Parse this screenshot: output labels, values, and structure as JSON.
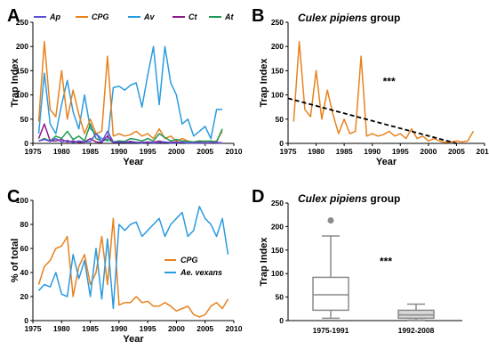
{
  "chart_data": [
    {
      "panel": "A",
      "type": "line",
      "xlabel": "Year",
      "ylabel": "Trap Index",
      "xlim": [
        1975,
        2010
      ],
      "ylim": [
        0,
        250
      ],
      "xticks": [
        1975,
        1980,
        1985,
        1990,
        1995,
        2000,
        2005,
        2010
      ],
      "yticks": [
        0,
        50,
        100,
        150,
        200,
        250
      ],
      "legend_placement": "top",
      "series": [
        {
          "name": "Ap",
          "color": "#5b4fd6",
          "x": [
            1976,
            1977,
            1978,
            1979,
            1980,
            1981,
            1982,
            1983,
            1984,
            1985,
            1986,
            1987,
            1988,
            1989,
            1990,
            1991,
            1992,
            1993,
            1994,
            1995,
            1996,
            1997,
            1998,
            1999,
            2000,
            2001,
            2002,
            2003,
            2004,
            2005,
            2006,
            2007,
            2008
          ],
          "y": [
            5,
            8,
            4,
            10,
            3,
            6,
            2,
            5,
            3,
            4,
            20,
            3,
            25,
            3,
            2,
            3,
            2,
            2,
            1,
            2,
            1,
            2,
            3,
            1,
            1,
            2,
            1,
            1,
            1,
            1,
            2,
            1,
            1
          ]
        },
        {
          "name": "CPG",
          "color": "#e8821e",
          "x": [
            1976,
            1977,
            1978,
            1979,
            1980,
            1981,
            1982,
            1983,
            1984,
            1985,
            1986,
            1987,
            1988,
            1989,
            1990,
            1991,
            1992,
            1993,
            1994,
            1995,
            1996,
            1997,
            1998,
            1999,
            2000,
            2001,
            2002,
            2003,
            2004,
            2005,
            2006,
            2007,
            2008
          ],
          "y": [
            45,
            210,
            70,
            55,
            150,
            50,
            110,
            60,
            20,
            50,
            20,
            25,
            180,
            15,
            20,
            15,
            18,
            25,
            15,
            20,
            10,
            30,
            10,
            15,
            5,
            10,
            5,
            2,
            3,
            5,
            3,
            5,
            25
          ]
        },
        {
          "name": "Av",
          "color": "#2b9be0",
          "x": [
            1976,
            1977,
            1978,
            1979,
            1980,
            1981,
            1982,
            1983,
            1984,
            1985,
            1986,
            1987,
            1988,
            1989,
            1990,
            1991,
            1992,
            1993,
            1994,
            1995,
            1996,
            1997,
            1998,
            1999,
            2000,
            2001,
            2002,
            2003,
            2004,
            2005,
            2006,
            2007,
            2008
          ],
          "y": [
            20,
            145,
            40,
            20,
            80,
            130,
            65,
            30,
            100,
            30,
            20,
            10,
            5,
            115,
            118,
            110,
            120,
            125,
            75,
            140,
            200,
            80,
            200,
            125,
            100,
            40,
            50,
            15,
            25,
            35,
            10,
            70,
            70
          ]
        },
        {
          "name": "Ct",
          "color": "#8e1b8a",
          "x": [
            1976,
            1977,
            1978,
            1979,
            1980,
            1981,
            1982,
            1983,
            1984,
            1985,
            1986,
            1987,
            1988,
            1989,
            1990,
            1991,
            1992,
            1993,
            1994,
            1995,
            1996,
            1997,
            1998,
            1999,
            2000,
            2001,
            2002,
            2003,
            2004,
            2005,
            2006,
            2007,
            2008
          ],
          "y": [
            10,
            40,
            5,
            5,
            8,
            3,
            5,
            2,
            3,
            10,
            3,
            2,
            15,
            2,
            3,
            2,
            4,
            2,
            2,
            3,
            2,
            5,
            2,
            2,
            3,
            2,
            1,
            1,
            2,
            1,
            1,
            2,
            1
          ]
        },
        {
          "name": "At",
          "color": "#1f9a55",
          "x": [
            1976,
            1977,
            1978,
            1979,
            1980,
            1981,
            1982,
            1983,
            1984,
            1985,
            1986,
            1987,
            1988,
            1989,
            1990,
            1991,
            1992,
            1993,
            1994,
            1995,
            1996,
            1997,
            1998,
            1999,
            2000,
            2001,
            2002,
            2003,
            2004,
            2005,
            2006,
            2007,
            2008
          ],
          "y": [
            5,
            10,
            5,
            15,
            10,
            25,
            8,
            15,
            5,
            40,
            10,
            5,
            8,
            3,
            5,
            4,
            10,
            8,
            5,
            10,
            5,
            20,
            12,
            5,
            8,
            5,
            4,
            3,
            5,
            4,
            5,
            3,
            30
          ]
        }
      ]
    },
    {
      "panel": "B",
      "type": "line",
      "title_italic": "Culex pipiens",
      "title_rest": " group",
      "xlabel": "Year",
      "ylabel": "Trap Index",
      "xlim": [
        1975,
        2010
      ],
      "ylim": [
        0,
        250
      ],
      "xticks": [
        1975,
        1980,
        1985,
        1990,
        1995,
        2000,
        2005,
        2010
      ],
      "yticks": [
        0,
        50,
        100,
        150,
        200,
        250
      ],
      "annotation": "***",
      "annotation_pos": [
        1993,
        120
      ],
      "series": [
        {
          "name": "CPG",
          "color": "#e8821e",
          "x": [
            1976,
            1977,
            1978,
            1979,
            1980,
            1981,
            1982,
            1983,
            1984,
            1985,
            1986,
            1987,
            1988,
            1989,
            1990,
            1991,
            1992,
            1993,
            1994,
            1995,
            1996,
            1997,
            1998,
            1999,
            2000,
            2001,
            2002,
            2003,
            2004,
            2005,
            2006,
            2007,
            2008
          ],
          "y": [
            45,
            210,
            70,
            55,
            150,
            50,
            110,
            60,
            20,
            50,
            20,
            25,
            180,
            15,
            20,
            15,
            18,
            25,
            15,
            20,
            10,
            30,
            10,
            15,
            5,
            10,
            5,
            2,
            3,
            5,
            3,
            5,
            25
          ]
        }
      ],
      "trend": {
        "x": [
          1975,
          2005
        ],
        "y": [
          93,
          0
        ],
        "color": "#000000"
      }
    },
    {
      "panel": "C",
      "type": "line",
      "xlabel": "Year",
      "ylabel": "% of total",
      "xlim": [
        1975,
        2010
      ],
      "ylim": [
        0,
        100
      ],
      "xticks": [
        1975,
        1980,
        1985,
        1990,
        1995,
        2000,
        2005,
        2010
      ],
      "yticks": [
        0,
        20,
        40,
        60,
        80,
        100
      ],
      "legend_placement": "middle-right",
      "series": [
        {
          "name": "CPG",
          "color": "#e8821e",
          "x": [
            1976,
            1977,
            1978,
            1979,
            1980,
            1981,
            1982,
            1983,
            1984,
            1985,
            1986,
            1987,
            1988,
            1989,
            1990,
            1991,
            1992,
            1993,
            1994,
            1995,
            1996,
            1997,
            1998,
            1999,
            2000,
            2001,
            2002,
            2003,
            2004,
            2005,
            2006,
            2007,
            2008,
            2009
          ],
          "y": [
            30,
            45,
            50,
            60,
            62,
            70,
            20,
            45,
            55,
            30,
            40,
            70,
            30,
            85,
            13,
            15,
            15,
            20,
            15,
            16,
            12,
            12,
            15,
            12,
            8,
            10,
            12,
            5,
            3,
            5,
            12,
            15,
            10,
            18
          ]
        },
        {
          "name": "Ae. vexans",
          "color": "#2b9be0",
          "x": [
            1976,
            1977,
            1978,
            1979,
            1980,
            1981,
            1982,
            1983,
            1984,
            1985,
            1986,
            1987,
            1988,
            1989,
            1990,
            1991,
            1992,
            1993,
            1994,
            1995,
            1996,
            1997,
            1998,
            1999,
            2000,
            2001,
            2002,
            2003,
            2004,
            2005,
            2006,
            2007,
            2008,
            2009
          ],
          "y": [
            25,
            30,
            28,
            40,
            22,
            20,
            55,
            35,
            50,
            20,
            60,
            18,
            68,
            10,
            80,
            75,
            80,
            82,
            70,
            75,
            80,
            85,
            70,
            80,
            85,
            90,
            70,
            75,
            95,
            85,
            80,
            70,
            85,
            55
          ]
        }
      ]
    },
    {
      "panel": "D",
      "type": "box",
      "title_italic": "Culex pipiens",
      "title_rest": " group",
      "ylabel": "Trap Index",
      "ylim": [
        0,
        250
      ],
      "yticks": [
        0,
        50,
        100,
        150,
        200,
        250
      ],
      "categories": [
        "1975-1991",
        "1992-2008"
      ],
      "annotation": "***",
      "boxes": [
        {
          "label": "1975-1991",
          "whisker_low": 5,
          "q1": 22,
          "median": 55,
          "q3": 92,
          "whisker_high": 180,
          "outliers": [
            213
          ],
          "fill": "#ffffff"
        },
        {
          "label": "1992-2008",
          "whisker_low": 1,
          "q1": 5,
          "median": 12,
          "q3": 22,
          "whisker_high": 35,
          "outliers": [],
          "fill": "#d8d8d8"
        }
      ],
      "colors": {
        "stroke": "#8a8a8a",
        "outlier": "#8a8a8a"
      }
    }
  ]
}
